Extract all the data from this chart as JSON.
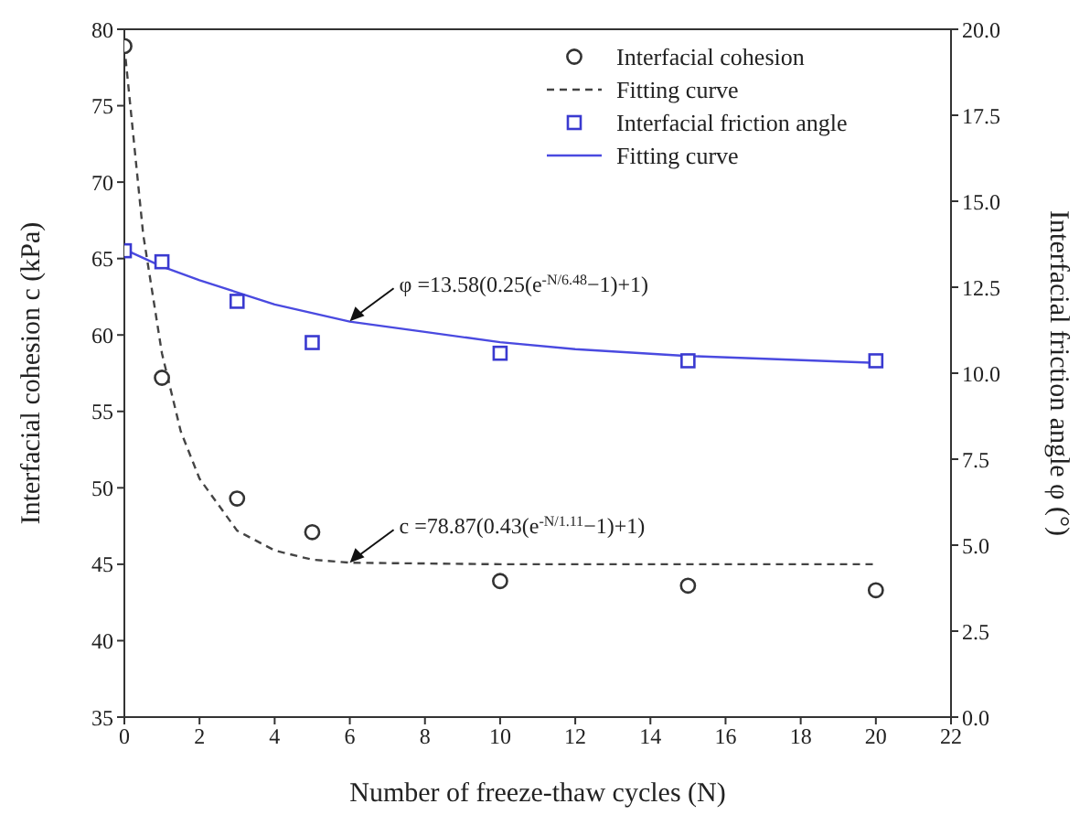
{
  "chart_data": {
    "type": "scatter",
    "xlabel": "Number of freeze-thaw cycles (N)",
    "ylabel": "Interfacial cohesion c (kPa)",
    "y2label": "Interfacial friction angle φ (°)",
    "xlim": [
      0,
      22
    ],
    "xticks": [
      0,
      2,
      4,
      6,
      8,
      10,
      12,
      14,
      16,
      18,
      20,
      22
    ],
    "ylim": [
      35,
      80
    ],
    "yticks": [
      35,
      40,
      45,
      50,
      55,
      60,
      65,
      70,
      75,
      80
    ],
    "y2lim": [
      0,
      20
    ],
    "y2ticks": [
      {
        "value": 0,
        "label": "0.0"
      },
      {
        "value": 2.5,
        "label": "2.5"
      },
      {
        "value": 5,
        "label": "5.0"
      },
      {
        "value": 7.5,
        "label": "7.5"
      },
      {
        "value": 10,
        "label": "10.0"
      },
      {
        "value": 12.5,
        "label": "12.5"
      },
      {
        "value": 15,
        "label": "15.0"
      },
      {
        "value": 17.5,
        "label": "17.5"
      },
      {
        "value": 20,
        "label": "20.0"
      }
    ],
    "legend": "top right",
    "series": [
      {
        "name": "Interfacial cohesion",
        "marker": "circle",
        "color": "#333333",
        "x": [
          0,
          1,
          3,
          5,
          10,
          15,
          20
        ],
        "values": [
          78.9,
          57.2,
          49.3,
          47.1,
          43.9,
          43.6,
          43.3
        ]
      },
      {
        "name": "Fitting curve",
        "type": "line",
        "line_style": "dashed",
        "marker": "none",
        "color": "#444444",
        "x": [
          0,
          0.5,
          1,
          1.5,
          2,
          3,
          4,
          5,
          6,
          10,
          15,
          20
        ],
        "values": [
          78.9,
          66.6,
          58.8,
          53.7,
          50.6,
          47.2,
          45.9,
          45.3,
          45.1,
          45.0,
          45.0,
          45.0
        ]
      },
      {
        "name": "Interfacial friction angle",
        "marker": "square",
        "axis": "y2",
        "color": "#3a3ad0",
        "x": [
          0,
          1,
          3,
          5,
          10,
          15,
          20
        ],
        "values": [
          13.56,
          13.24,
          12.09,
          10.89,
          10.58,
          10.36,
          10.36
        ]
      },
      {
        "name": "Fitting curve",
        "type": "line",
        "line_style": "solid",
        "marker": "none",
        "axis": "y2",
        "color": "#4a4ae0",
        "x": [
          0,
          1,
          2,
          4,
          6,
          8,
          10,
          12,
          15,
          20
        ],
        "values": [
          13.6,
          13.1,
          12.7,
          12.0,
          11.5,
          11.2,
          10.9,
          10.7,
          10.5,
          10.3
        ]
      }
    ],
    "annotations": [
      {
        "text": "φ =13.58(0.25(e$^{-N/6.48}$−1)+1)",
        "x": 6,
        "y": 60.9
      },
      {
        "text": "c =78.87(0.43(e$^{-N/1.11}$−1)+1)",
        "x": 6,
        "y": 45.1
      }
    ]
  }
}
